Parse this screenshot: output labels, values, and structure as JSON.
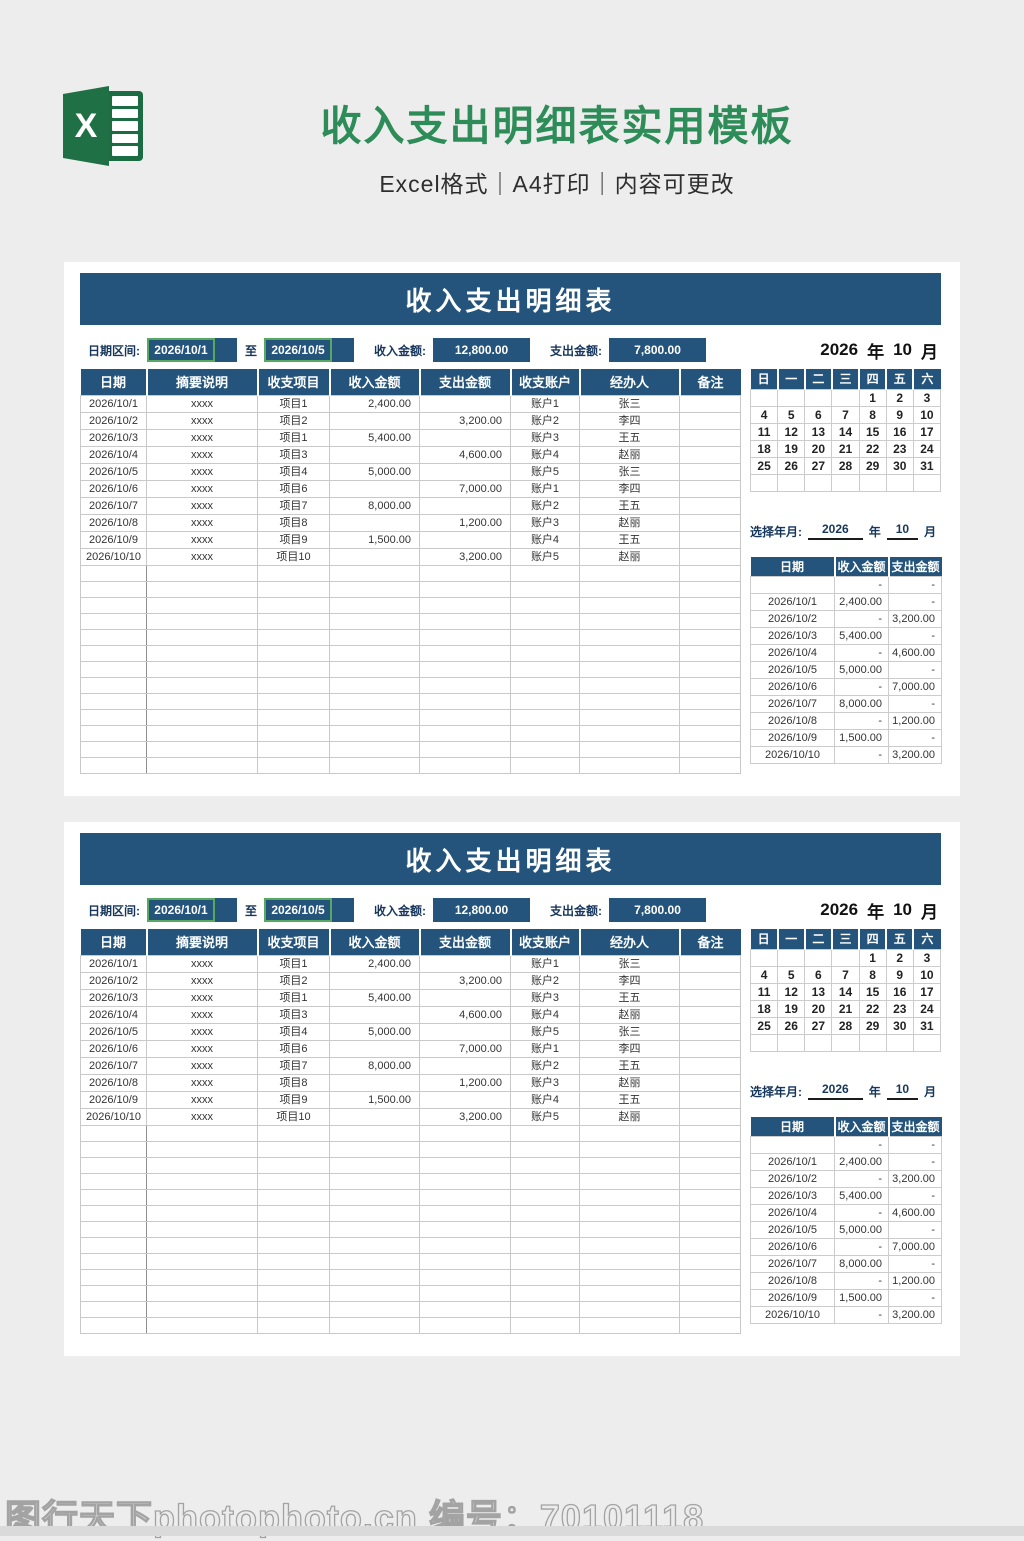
{
  "header": {
    "logo_letter": "X",
    "title": "收入支出明细表实用模板",
    "subtitle": "Excel格式｜A4打印｜内容可更改"
  },
  "panel": {
    "title": "收入支出明细表",
    "filter": {
      "date_range_label": "日期区间:",
      "date_from": "2026/10/1",
      "to_label": "至",
      "date_to": "2026/10/5",
      "income_label": "收入金额:",
      "income_value": "12,800.00",
      "expense_label": "支出金额:",
      "expense_value": "7,800.00"
    },
    "table": {
      "headers": [
        "日期",
        "摘要说明",
        "收支项目",
        "收入金额",
        "支出金额",
        "收支账户",
        "经办人",
        "备注"
      ],
      "rows": [
        [
          "2026/10/1",
          "xxxx",
          "项目1",
          "2,400.00",
          "",
          "账户1",
          "张三",
          ""
        ],
        [
          "2026/10/2",
          "xxxx",
          "项目2",
          "",
          "3,200.00",
          "账户2",
          "李四",
          ""
        ],
        [
          "2026/10/3",
          "xxxx",
          "项目1",
          "5,400.00",
          "",
          "账户3",
          "王五",
          ""
        ],
        [
          "2026/10/4",
          "xxxx",
          "项目3",
          "",
          "4,600.00",
          "账户4",
          "赵丽",
          ""
        ],
        [
          "2026/10/5",
          "xxxx",
          "项目4",
          "5,000.00",
          "",
          "账户5",
          "张三",
          ""
        ],
        [
          "2026/10/6",
          "xxxx",
          "项目6",
          "",
          "7,000.00",
          "账户1",
          "李四",
          ""
        ],
        [
          "2026/10/7",
          "xxxx",
          "项目7",
          "8,000.00",
          "",
          "账户2",
          "王五",
          ""
        ],
        [
          "2026/10/8",
          "xxxx",
          "项目8",
          "",
          "1,200.00",
          "账户3",
          "赵丽",
          ""
        ],
        [
          "2026/10/9",
          "xxxx",
          "项目9",
          "1,500.00",
          "",
          "账户4",
          "王五",
          ""
        ],
        [
          "2026/10/10",
          "xxxx",
          "项目10",
          "",
          "3,200.00",
          "账户5",
          "赵丽",
          ""
        ]
      ],
      "empty_row_count": 13
    },
    "calendar": {
      "year": "2026",
      "year_label": "年",
      "month": "10",
      "month_label": "月",
      "weekdays": [
        "日",
        "一",
        "二",
        "三",
        "四",
        "五",
        "六"
      ],
      "weeks": [
        [
          "",
          "",
          "",
          "",
          "1",
          "2",
          "3"
        ],
        [
          "4",
          "5",
          "6",
          "7",
          "8",
          "9",
          "10"
        ],
        [
          "11",
          "12",
          "13",
          "14",
          "15",
          "16",
          "17"
        ],
        [
          "18",
          "19",
          "20",
          "21",
          "22",
          "23",
          "24"
        ],
        [
          "25",
          "26",
          "27",
          "28",
          "29",
          "30",
          "31"
        ],
        [
          "",
          "",
          "",
          "",
          "",
          "",
          ""
        ]
      ],
      "select_label": "选择年月:"
    },
    "mini_table": {
      "headers": [
        "日期",
        "收入金额",
        "支出金额"
      ],
      "rows": [
        [
          "",
          "-",
          "-"
        ],
        [
          "2026/10/1",
          "2,400.00",
          "-"
        ],
        [
          "2026/10/2",
          "-",
          "3,200.00"
        ],
        [
          "2026/10/3",
          "5,400.00",
          "-"
        ],
        [
          "2026/10/4",
          "-",
          "4,600.00"
        ],
        [
          "2026/10/5",
          "5,000.00",
          "-"
        ],
        [
          "2026/10/6",
          "-",
          "7,000.00"
        ],
        [
          "2026/10/7",
          "8,000.00",
          "-"
        ],
        [
          "2026/10/8",
          "-",
          "1,200.00"
        ],
        [
          "2026/10/9",
          "1,500.00",
          "-"
        ],
        [
          "2026/10/10",
          "-",
          "3,200.00"
        ]
      ]
    }
  },
  "watermark": "图行天下photophoto.cn 编号：70101118",
  "colors": {
    "accent_blue": "#24547c",
    "title_green": "#2d8c57",
    "dropdown_border_green": "#57a95f"
  }
}
